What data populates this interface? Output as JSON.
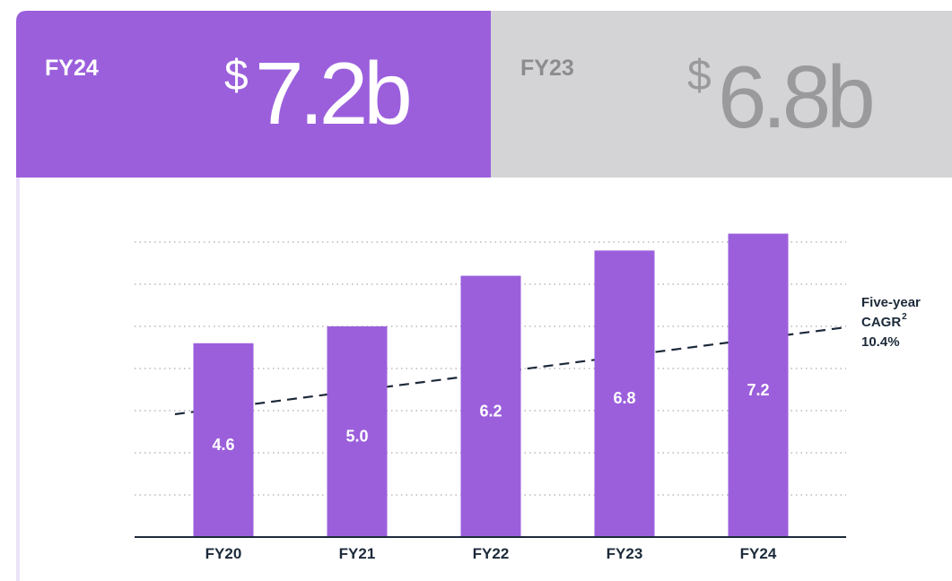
{
  "header": {
    "current": {
      "label": "FY24",
      "currency": "$",
      "amount": "7.2b"
    },
    "previous": {
      "label": "FY23",
      "currency": "$",
      "amount": "6.8b"
    }
  },
  "chart_data": {
    "type": "bar",
    "categories": [
      "FY20",
      "FY21",
      "FY22",
      "FY23",
      "FY24"
    ],
    "values": [
      4.6,
      5.0,
      6.2,
      6.8,
      7.2
    ],
    "value_labels": [
      "4.6",
      "5.0",
      "6.2",
      "6.8",
      "7.2"
    ],
    "color": "#9b5fdc",
    "ylim": [
      0,
      7
    ],
    "yticks": [
      1,
      2,
      3,
      4,
      5,
      6,
      7
    ],
    "grid": true,
    "annotation": {
      "lines": [
        "Five-year",
        "CAGR"
      ],
      "footnote": "2",
      "value": 10.4,
      "value_label": "10.4%"
    }
  }
}
